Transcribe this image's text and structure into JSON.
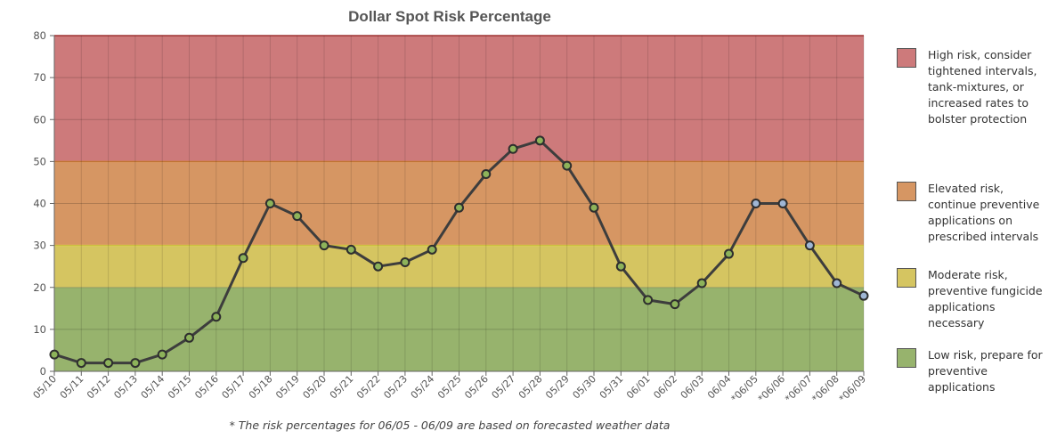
{
  "chart_data": {
    "type": "line",
    "title": "Dollar Spot Risk Percentage",
    "xlabel": "",
    "ylabel": "",
    "ylim": [
      0,
      80
    ],
    "yticks": [
      0,
      10,
      20,
      30,
      40,
      50,
      60,
      70,
      80
    ],
    "categories": [
      "05/10",
      "05/11",
      "05/12",
      "05/13",
      "05/14",
      "05/15",
      "05/16",
      "05/17",
      "05/18",
      "05/19",
      "05/20",
      "05/21",
      "05/22",
      "05/23",
      "05/24",
      "05/25",
      "05/26",
      "05/27",
      "05/28",
      "05/29",
      "05/30",
      "05/31",
      "06/01",
      "06/02",
      "06/03",
      "06/04",
      "*06/05",
      "*06/06",
      "*06/07",
      "*06/08",
      "*06/09"
    ],
    "series": [
      {
        "values": [
          4,
          2,
          2,
          2,
          4,
          8,
          13,
          27,
          40,
          37,
          30,
          29,
          25,
          26,
          29,
          39,
          47,
          53,
          55,
          49,
          39,
          25,
          17,
          16,
          21,
          28,
          40,
          40,
          30,
          21,
          18
        ],
        "forecast_from_index": 26
      }
    ],
    "bands": [
      {
        "from": 50,
        "to": 80,
        "color": "#cd7a7b",
        "label": "High risk, consider tightened intervals, tank-mixtures, or increased rates to bolster protection"
      },
      {
        "from": 30,
        "to": 50,
        "color": "#d69663",
        "label": "Elevated risk, continue preventive applications on prescribed intervals"
      },
      {
        "from": 20,
        "to": 30,
        "color": "#d5c561",
        "label": "Moderate risk, preventive fungicide applications necessary"
      },
      {
        "from": 0,
        "to": 20,
        "color": "#97b36d",
        "label": "Low risk, prepare for preventive applications"
      }
    ],
    "colors": {
      "line": "#3d3d3d",
      "marker_observed": "#8db35a",
      "marker_forecast": "#9fb6d4",
      "band_edge_high": "#b53b3b",
      "band_edge_elevated": "#e38a3c",
      "band_edge_moderate": "#f1e24a"
    },
    "grid": true,
    "legend_position": "right",
    "footnote": "* The risk percentages for 06/05 - 06/09 are based on forecasted weather data"
  }
}
